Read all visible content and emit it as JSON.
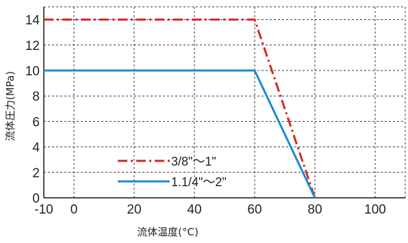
{
  "chart_data": {
    "type": "line",
    "xlabel": "流体温度(°C)",
    "ylabel": "流体圧力(MPa)",
    "xlim": [
      -10,
      110
    ],
    "ylim": [
      0,
      15
    ],
    "xticks": [
      -10,
      0,
      20,
      40,
      60,
      80,
      100
    ],
    "yticks": [
      0,
      2,
      4,
      6,
      8,
      10,
      12,
      14
    ],
    "xtick_labels": [
      "-10",
      "0",
      "20",
      "40",
      "60",
      "80",
      "100"
    ],
    "ytick_labels": [
      "0",
      "2",
      "4",
      "6",
      "8",
      "10",
      "12",
      "14"
    ],
    "grid": true,
    "legend_position": "bottom-left",
    "series": [
      {
        "name": "3/8\"〜1\"",
        "color": "#d9251d",
        "line_style": "dash-dot",
        "points": [
          [
            -10,
            14
          ],
          [
            60,
            14
          ],
          [
            80,
            0
          ]
        ]
      },
      {
        "name": "1.1/4\"〜2\"",
        "color": "#1a8ad4",
        "line_style": "solid",
        "points": [
          [
            -10,
            10
          ],
          [
            60,
            10
          ],
          [
            80,
            0
          ]
        ]
      }
    ]
  }
}
